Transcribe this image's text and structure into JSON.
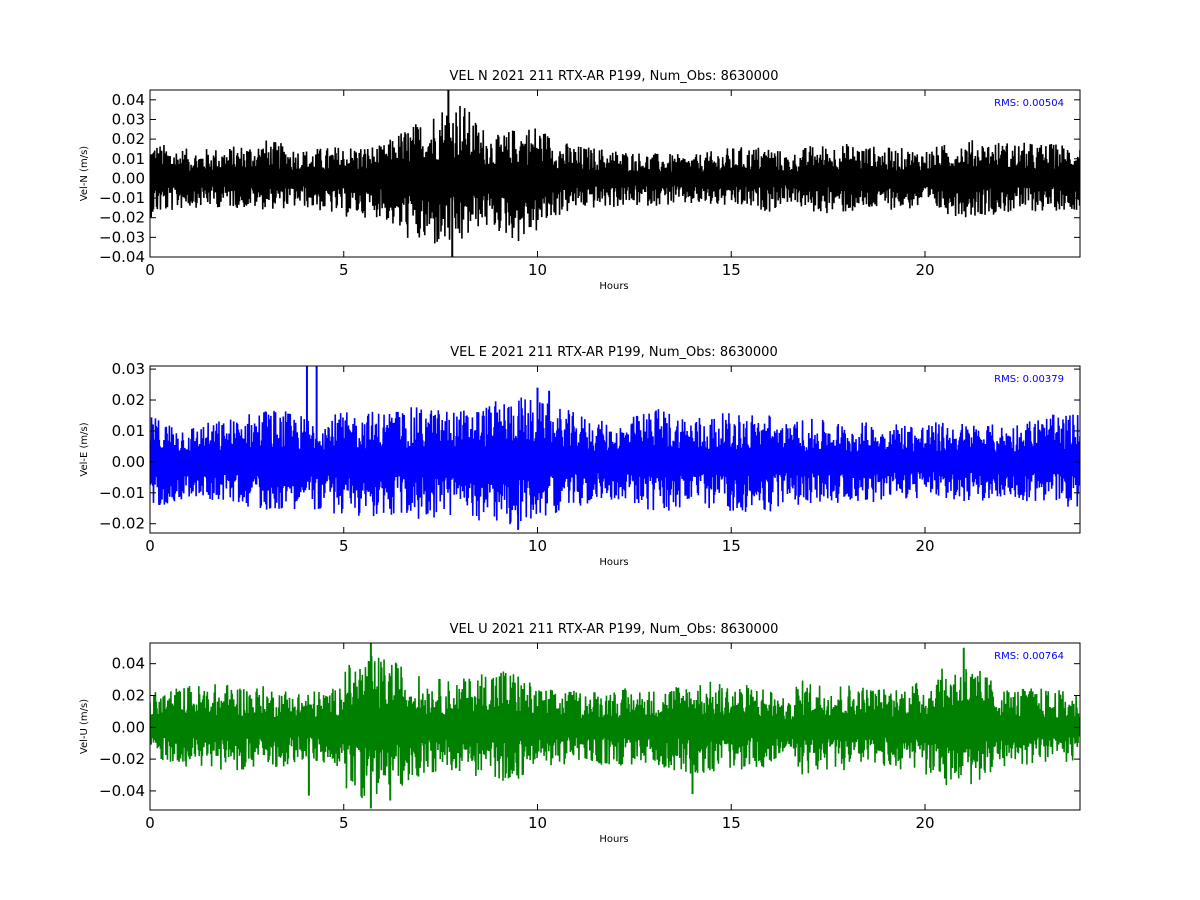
{
  "chart_data": [
    {
      "type": "line",
      "title": "VEL N 2021 211 RTX-AR  P199, Num_Obs: 8630000",
      "xlabel": "Hours",
      "ylabel": "Vel-N (m/s)",
      "xlim": [
        0,
        24
      ],
      "ylim": [
        -0.04,
        0.045
      ],
      "xticks": [
        0,
        5,
        10,
        15,
        20
      ],
      "xtick_labels": [
        "0",
        "5",
        "10",
        "15",
        "20"
      ],
      "yticks": [
        -0.04,
        -0.03,
        -0.02,
        -0.01,
        0.0,
        0.01,
        0.02,
        0.03,
        0.04
      ],
      "ytick_labels": [
        "−0.04",
        "−0.03",
        "−0.02",
        "−0.01",
        "0.00",
        "0.01",
        "0.02",
        "0.03",
        "0.04"
      ],
      "color": "#000000",
      "annotation": "RMS:  0.00504",
      "annotation_color": "#0000ff",
      "grid": false,
      "series": [
        {
          "x": [
            0,
            1,
            2,
            3,
            4,
            5,
            6,
            6.5,
            7,
            7.5,
            8,
            8.5,
            9,
            9.5,
            10,
            10.5,
            11,
            12,
            13,
            14,
            15,
            16,
            16.5,
            16.7,
            17,
            18,
            19,
            20,
            21,
            22,
            23,
            24
          ],
          "envelope_max": [
            0.019,
            0.015,
            0.016,
            0.02,
            0.015,
            0.017,
            0.017,
            0.025,
            0.03,
            0.038,
            0.041,
            0.028,
            0.022,
            0.027,
            0.028,
            0.02,
            0.017,
            0.015,
            0.013,
            0.012,
            0.016,
            0.017,
            0.012,
            0.014,
            0.017,
            0.018,
            0.016,
            0.015,
            0.02,
            0.019,
            0.018,
            0.018
          ],
          "envelope_min": [
            -0.02,
            -0.015,
            -0.015,
            -0.016,
            -0.015,
            -0.02,
            -0.02,
            -0.03,
            -0.035,
            -0.036,
            -0.036,
            -0.025,
            -0.028,
            -0.033,
            -0.028,
            -0.02,
            -0.016,
            -0.015,
            -0.014,
            -0.014,
            -0.015,
            -0.017,
            -0.012,
            -0.014,
            -0.018,
            -0.018,
            -0.016,
            -0.016,
            -0.02,
            -0.018,
            -0.017,
            -0.016
          ],
          "spikes": [
            [
              7.7,
              0.045
            ],
            [
              7.8,
              -0.04
            ]
          ]
        }
      ]
    },
    {
      "type": "line",
      "title": "VEL E 2021 211 RTX-AR  P199, Num_Obs: 8630000",
      "xlabel": "Hours",
      "ylabel": "Vel-E (m/s)",
      "xlim": [
        0,
        24
      ],
      "ylim": [
        -0.023,
        0.031
      ],
      "xticks": [
        0,
        5,
        10,
        15,
        20
      ],
      "xtick_labels": [
        "0",
        "5",
        "10",
        "15",
        "20"
      ],
      "yticks": [
        -0.02,
        -0.01,
        0.0,
        0.01,
        0.02,
        0.03
      ],
      "ytick_labels": [
        "−0.02",
        "−0.01",
        "0.00",
        "0.01",
        "0.02",
        "0.03"
      ],
      "color": "#0000ff",
      "annotation": "RMS:  0.00379",
      "annotation_color": "#0000ff",
      "grid": false,
      "series": [
        {
          "x": [
            0,
            1,
            2,
            3,
            4,
            5,
            6,
            7,
            8,
            9,
            9.5,
            10,
            11,
            12,
            13,
            14,
            15,
            16,
            16.5,
            16.7,
            17,
            18,
            19,
            20,
            21,
            22,
            23,
            24
          ],
          "envelope_max": [
            0.015,
            0.012,
            0.014,
            0.018,
            0.015,
            0.016,
            0.017,
            0.018,
            0.017,
            0.02,
            0.022,
            0.02,
            0.016,
            0.012,
            0.018,
            0.015,
            0.016,
            0.016,
            0.012,
            0.014,
            0.014,
            0.013,
            0.013,
            0.013,
            0.013,
            0.012,
            0.015,
            0.016
          ],
          "envelope_min": [
            -0.015,
            -0.012,
            -0.013,
            -0.016,
            -0.015,
            -0.018,
            -0.018,
            -0.019,
            -0.018,
            -0.02,
            -0.022,
            -0.018,
            -0.015,
            -0.012,
            -0.017,
            -0.015,
            -0.016,
            -0.017,
            -0.012,
            -0.014,
            -0.014,
            -0.013,
            -0.013,
            -0.012,
            -0.013,
            -0.012,
            -0.014,
            -0.015
          ],
          "spikes": [
            [
              4.05,
              0.031
            ],
            [
              4.3,
              0.031
            ],
            [
              10.0,
              0.024
            ],
            [
              9.5,
              -0.022
            ],
            [
              10.3,
              0.023
            ]
          ]
        }
      ]
    },
    {
      "type": "line",
      "title": "VEL U 2021 211 RTX-AR  P199, Num_Obs: 8630000",
      "xlabel": "Hours",
      "ylabel": "Vel-U (m/s)",
      "xlim": [
        0,
        24
      ],
      "ylim": [
        -0.052,
        0.053
      ],
      "xticks": [
        0,
        5,
        10,
        15,
        20
      ],
      "xtick_labels": [
        "0",
        "5",
        "10",
        "15",
        "20"
      ],
      "yticks": [
        -0.04,
        -0.02,
        0.0,
        0.02,
        0.04
      ],
      "ytick_labels": [
        "−0.04",
        "−0.02",
        "0.00",
        "0.02",
        "0.04"
      ],
      "color": "#008000",
      "annotation": "RMS:  0.00764",
      "annotation_color": "#0000ff",
      "grid": false,
      "series": [
        {
          "x": [
            0,
            1,
            2,
            3,
            4,
            4.8,
            5,
            5.5,
            6,
            6.5,
            7,
            8,
            9,
            9.5,
            10,
            11,
            12,
            13,
            14,
            15,
            16,
            16.5,
            16.7,
            17,
            18,
            19,
            20,
            20.5,
            21,
            21.5,
            22,
            23,
            24
          ],
          "envelope_max": [
            0.022,
            0.027,
            0.028,
            0.026,
            0.023,
            0.025,
            0.038,
            0.045,
            0.045,
            0.04,
            0.032,
            0.03,
            0.04,
            0.035,
            0.025,
            0.023,
            0.025,
            0.024,
            0.03,
            0.028,
            0.026,
            0.015,
            0.03,
            0.03,
            0.028,
            0.025,
            0.03,
            0.038,
            0.042,
            0.035,
            0.025,
            0.025,
            0.022
          ],
          "envelope_min": [
            -0.02,
            -0.025,
            -0.027,
            -0.027,
            -0.022,
            -0.025,
            -0.038,
            -0.045,
            -0.042,
            -0.038,
            -0.03,
            -0.028,
            -0.035,
            -0.033,
            -0.025,
            -0.023,
            -0.025,
            -0.024,
            -0.03,
            -0.027,
            -0.026,
            -0.015,
            -0.03,
            -0.03,
            -0.027,
            -0.025,
            -0.03,
            -0.038,
            -0.04,
            -0.033,
            -0.025,
            -0.023,
            -0.022
          ],
          "spikes": [
            [
              5.7,
              0.053
            ],
            [
              5.7,
              -0.051
            ],
            [
              4.1,
              -0.043
            ],
            [
              14.0,
              -0.042
            ],
            [
              21.0,
              0.05
            ],
            [
              6.2,
              -0.046
            ]
          ]
        }
      ]
    }
  ]
}
